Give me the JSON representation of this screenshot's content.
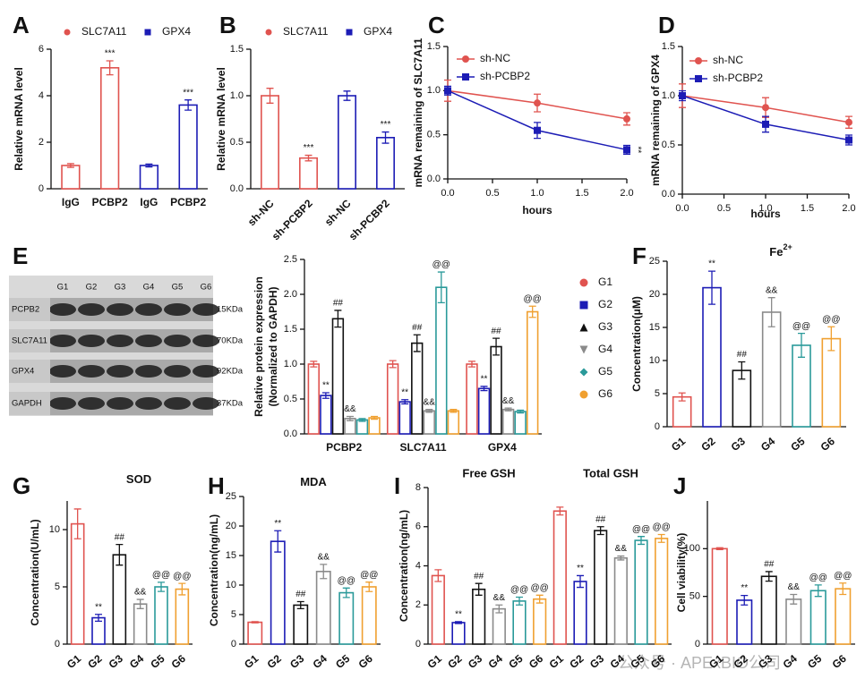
{
  "chart_data": [
    {
      "type": "bar",
      "panel": "A",
      "ylabel": "Relative mRNA level",
      "categories": [
        "IgG",
        "PCBP2",
        "IgG",
        "PCBP2"
      ],
      "series": [
        {
          "name": "SLC7A11",
          "color": "#e0534f",
          "values": [
            1.0,
            5.2,
            null,
            null
          ],
          "errors": [
            0.08,
            0.3,
            null,
            null
          ],
          "labels": [
            null,
            "***",
            null,
            null
          ]
        },
        {
          "name": "GPX4",
          "color": "#1c1cb5",
          "values": [
            null,
            null,
            1.0,
            3.6
          ],
          "errors": [
            null,
            null,
            0.06,
            0.22
          ],
          "labels": [
            null,
            null,
            null,
            "***"
          ]
        }
      ],
      "ylim": [
        0,
        6
      ],
      "yticks": [
        0,
        2,
        4,
        6
      ]
    },
    {
      "type": "bar",
      "panel": "B",
      "ylabel": "Relative mRNA level",
      "categories": [
        "sh-NC",
        "sh-PCBP2",
        "sh-NC",
        "sh-PCBP2"
      ],
      "series": [
        {
          "name": "SLC7A11",
          "color": "#e0534f",
          "values": [
            1.0,
            0.33,
            null,
            null
          ],
          "errors": [
            0.08,
            0.03,
            null,
            null
          ],
          "labels": [
            null,
            "***",
            null,
            null
          ]
        },
        {
          "name": "GPX4",
          "color": "#1c1cb5",
          "values": [
            null,
            null,
            1.0,
            0.55
          ],
          "errors": [
            null,
            null,
            0.05,
            0.06
          ],
          "labels": [
            null,
            null,
            null,
            "***"
          ]
        }
      ],
      "ylim": [
        0,
        1.5
      ],
      "yticks": [
        {
          "value": 0,
          "label": "0.0"
        },
        0.5,
        {
          "value": 1,
          "label": "1.0"
        },
        1.5
      ]
    },
    {
      "type": "line",
      "panel": "C",
      "xlabel": "hours",
      "ylabel": "mRNA remaining of SLC7A11",
      "x": [
        0,
        1,
        2
      ],
      "series": [
        {
          "name": "sh-NC",
          "color": "#e0534f",
          "values": [
            1.0,
            0.86,
            0.68
          ],
          "errors": [
            0.12,
            0.1,
            0.07
          ],
          "labels": [
            null,
            null,
            null
          ]
        },
        {
          "name": "sh-PCBP2",
          "color": "#1c1cb5",
          "values": [
            1.0,
            0.55,
            0.33
          ],
          "errors": [
            0.05,
            0.09,
            0.05
          ],
          "labels": [
            null,
            null,
            "**"
          ]
        }
      ],
      "xlim": [
        0,
        2
      ],
      "xticks": [
        {
          "value": 0,
          "label": "0.0"
        },
        0.5,
        {
          "value": 1,
          "label": "1.0"
        },
        1.5,
        {
          "value": 2,
          "label": "2.0"
        }
      ],
      "ylim": [
        0,
        1.5
      ],
      "yticks": [
        {
          "value": 0,
          "label": "0.0"
        },
        0.5,
        {
          "value": 1,
          "label": "1.0"
        },
        1.5
      ]
    },
    {
      "type": "line",
      "panel": "D",
      "xlabel": "hours",
      "ylabel": "mRNA remaining of GPX4",
      "x": [
        0,
        1,
        2
      ],
      "series": [
        {
          "name": "sh-NC",
          "color": "#e0534f",
          "values": [
            1.0,
            0.88,
            0.73
          ],
          "errors": [
            0.12,
            0.1,
            0.06
          ],
          "labels": [
            null,
            null,
            null
          ]
        },
        {
          "name": "sh-PCBP2",
          "color": "#1c1cb5",
          "values": [
            1.0,
            0.71,
            0.55
          ],
          "errors": [
            0.05,
            0.08,
            0.05
          ],
          "labels": [
            null,
            null,
            null
          ]
        }
      ],
      "xlim": [
        0,
        2
      ],
      "xticks": [
        {
          "value": 0,
          "label": "0.0"
        },
        0.5,
        {
          "value": 1,
          "label": "1.0"
        },
        1.5,
        {
          "value": 2,
          "label": "2.0"
        }
      ],
      "ylim": [
        0,
        1.5
      ],
      "yticks": [
        {
          "value": 0,
          "label": "0.0"
        },
        0.5,
        {
          "value": 1,
          "label": "1.0"
        },
        1.5
      ]
    },
    {
      "type": "bar",
      "panel": "E",
      "ylabel": [
        "Relative protein expression",
        "(Normalized to GAPDH)"
      ],
      "categories": [
        "PCBP2",
        "SLC7A11",
        "GPX4"
      ],
      "series": [
        {
          "name": "G1",
          "color": "#e0534f",
          "values": [
            1.0,
            1.0,
            1.0
          ],
          "errors": [
            0.04,
            0.05,
            0.04
          ],
          "labels": [
            null,
            null,
            null
          ]
        },
        {
          "name": "G2",
          "color": "#1c1cb5",
          "values": [
            0.55,
            0.46,
            0.65
          ],
          "errors": [
            0.04,
            0.03,
            0.03
          ],
          "labels": [
            "**",
            "**",
            "**"
          ]
        },
        {
          "name": "G3",
          "color": "#111111",
          "values": [
            1.65,
            1.3,
            1.25
          ],
          "errors": [
            0.12,
            0.12,
            0.12
          ],
          "labels": [
            "##",
            "##",
            "##"
          ]
        },
        {
          "name": "G4",
          "color": "#8a8a8a",
          "values": [
            0.22,
            0.33,
            0.35
          ],
          "errors": [
            0.03,
            0.02,
            0.02
          ],
          "labels": [
            "&&",
            "&&",
            "&&"
          ]
        },
        {
          "name": "G5",
          "color": "#2a9a9a",
          "values": [
            0.2,
            2.1,
            0.32
          ],
          "errors": [
            0.02,
            0.22,
            0.02
          ],
          "labels": [
            null,
            "@@",
            null
          ]
        },
        {
          "name": "G6",
          "color": "#f0a030",
          "values": [
            0.23,
            0.33,
            1.75
          ],
          "errors": [
            0.02,
            0.02,
            0.08
          ],
          "labels": [
            null,
            null,
            "@@"
          ]
        }
      ],
      "ylim": [
        0,
        2.5
      ],
      "yticks": [
        {
          "value": 0,
          "label": "0.0"
        },
        0.5,
        {
          "value": 1,
          "label": "1.0"
        },
        1.5,
        {
          "value": 2,
          "label": "2.0"
        },
        2.5
      ]
    },
    {
      "type": "bar",
      "panel": "F",
      "title": "Fe",
      "title_superscript": "2+",
      "ylabel": "Concentration(μM)",
      "categories": [
        "G1",
        "G2",
        "G3",
        "G4",
        "G5",
        "G6"
      ],
      "colors": [
        "#e0534f",
        "#1c1cb5",
        "#111111",
        "#8a8a8a",
        "#2a9a9a",
        "#f0a030"
      ],
      "values": [
        4.5,
        21.0,
        8.5,
        17.3,
        12.3,
        13.3
      ],
      "errors": [
        0.6,
        2.5,
        1.3,
        2.2,
        1.8,
        1.8
      ],
      "labels": [
        null,
        "**",
        "##",
        "&&",
        "@@",
        "@@"
      ],
      "ylim": [
        0,
        25
      ],
      "yticks": [
        0,
        5,
        10,
        15,
        20,
        25
      ]
    },
    {
      "type": "bar",
      "panel": "G",
      "title": "SOD",
      "ylabel": "Concentration(U/mL)",
      "categories": [
        "G1",
        "G2",
        "G3",
        "G4",
        "G5",
        "G6"
      ],
      "colors": [
        "#e0534f",
        "#1c1cb5",
        "#111111",
        "#8a8a8a",
        "#2a9a9a",
        "#f0a030"
      ],
      "values": [
        10.5,
        2.3,
        7.8,
        3.5,
        5.0,
        4.8
      ],
      "errors": [
        1.3,
        0.3,
        0.9,
        0.4,
        0.4,
        0.5
      ],
      "labels": [
        null,
        "**",
        "##",
        "&&",
        "@@",
        "@@"
      ],
      "ylim": [
        0,
        12.5
      ],
      "yticks": [
        0,
        5,
        10
      ]
    },
    {
      "type": "bar",
      "panel": "H",
      "title": "MDA",
      "ylabel": "Concentration(ng/mL)",
      "categories": [
        "G1",
        "G2",
        "G3",
        "G4",
        "G5",
        "G6"
      ],
      "colors": [
        "#e0534f",
        "#1c1cb5",
        "#111111",
        "#8a8a8a",
        "#2a9a9a",
        "#f0a030"
      ],
      "values": [
        3.7,
        17.4,
        6.6,
        12.3,
        8.7,
        9.7
      ],
      "errors": [
        0.1,
        1.8,
        0.6,
        1.2,
        0.8,
        0.8
      ],
      "labels": [
        null,
        "**",
        "##",
        "&&",
        "@@",
        "@@"
      ],
      "ylim": [
        0,
        25
      ],
      "yticks": [
        0,
        5,
        10,
        15,
        20,
        25
      ]
    },
    {
      "type": "bar",
      "panel": "I",
      "ylabel": "Concentration(ng/mL)",
      "categories": [
        "G1",
        "G2",
        "G3",
        "G4",
        "G5",
        "G6"
      ],
      "colors": [
        "#e0534f",
        "#1c1cb5",
        "#111111",
        "#8a8a8a",
        "#2a9a9a",
        "#f0a030"
      ],
      "groups": [
        {
          "title": "Free GSH",
          "values": [
            3.5,
            1.1,
            2.8,
            1.8,
            2.2,
            2.3
          ],
          "errors": [
            0.3,
            0.05,
            0.3,
            0.2,
            0.2,
            0.2
          ],
          "labels": [
            null,
            "**",
            "##",
            "&&",
            "@@",
            "@@"
          ]
        },
        {
          "title": "Total GSH",
          "values": [
            6.8,
            3.2,
            5.8,
            4.4,
            5.3,
            5.4
          ],
          "errors": [
            0.2,
            0.3,
            0.2,
            0.1,
            0.2,
            0.2
          ],
          "labels": [
            null,
            "**",
            "##",
            "&&",
            "@@",
            "@@"
          ]
        }
      ],
      "ylim": [
        0,
        8
      ],
      "yticks": [
        0,
        2,
        4,
        6,
        8
      ]
    },
    {
      "type": "bar",
      "panel": "J",
      "ylabel": "Cell viability(%)",
      "categories": [
        "G1",
        "G2",
        "G3",
        "G4",
        "G5",
        "G6"
      ],
      "colors": [
        "#e0534f",
        "#1c1cb5",
        "#111111",
        "#8a8a8a",
        "#2a9a9a",
        "#f0a030"
      ],
      "values": [
        100,
        46,
        71,
        47,
        56,
        58
      ],
      "errors": [
        1,
        5,
        5,
        5,
        6,
        6
      ],
      "labels": [
        null,
        "**",
        "##",
        "&&",
        "@@",
        "@@"
      ],
      "ylim": [
        0,
        150
      ],
      "yticks": [
        0,
        50,
        100
      ]
    }
  ],
  "blot": {
    "lanes": [
      "G1",
      "G2",
      "G3",
      "G4",
      "G5",
      "G6"
    ],
    "rows": [
      {
        "protein": "PCPB2",
        "size": "15KDa"
      },
      {
        "protein": "SLC7A11",
        "size": "70KDa"
      },
      {
        "protein": "GPX4",
        "size": "92KDa"
      },
      {
        "protein": "GAPDH",
        "size": "37KDa"
      }
    ]
  },
  "watermark": "公众号 · APExBIO公司"
}
